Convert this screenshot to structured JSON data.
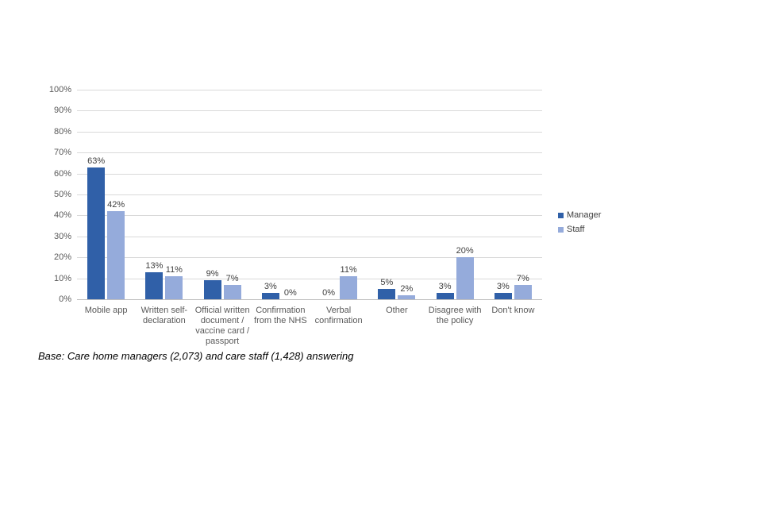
{
  "chart_data": {
    "type": "bar",
    "categories": [
      "Mobile app",
      "Written self-\ndeclaration",
      "Official written\ndocument /\nvaccine card /\npassport",
      "Confirmation\nfrom the NHS",
      "Verbal\nconfirmation",
      "Other",
      "Disagree with\nthe policy",
      "Don't know"
    ],
    "series": [
      {
        "name": "Manager",
        "color": "#3060a8",
        "values": [
          63,
          13,
          9,
          3,
          0,
          5,
          3,
          3
        ]
      },
      {
        "name": "Staff",
        "color": "#95abdb",
        "values": [
          42,
          11,
          7,
          0,
          11,
          2,
          20,
          7
        ]
      }
    ],
    "value_suffix": "%",
    "title": "",
    "xlabel": "",
    "ylabel": "",
    "ylim": [
      0,
      100
    ],
    "ytick_step": 10,
    "ytick_labels": [
      "0%",
      "10%",
      "20%",
      "30%",
      "40%",
      "50%",
      "60%",
      "70%",
      "80%",
      "90%",
      "100%"
    ],
    "grid": true,
    "legend_position": "right",
    "note": "Base: Care home managers (2,073) and care staff (1,428) answering"
  },
  "colors": {
    "gridline": "#d9d9d9",
    "axis_line": "#bfbfbf",
    "tick_text": "#595959",
    "data_label_text": "#404040",
    "background": "#ffffff"
  }
}
